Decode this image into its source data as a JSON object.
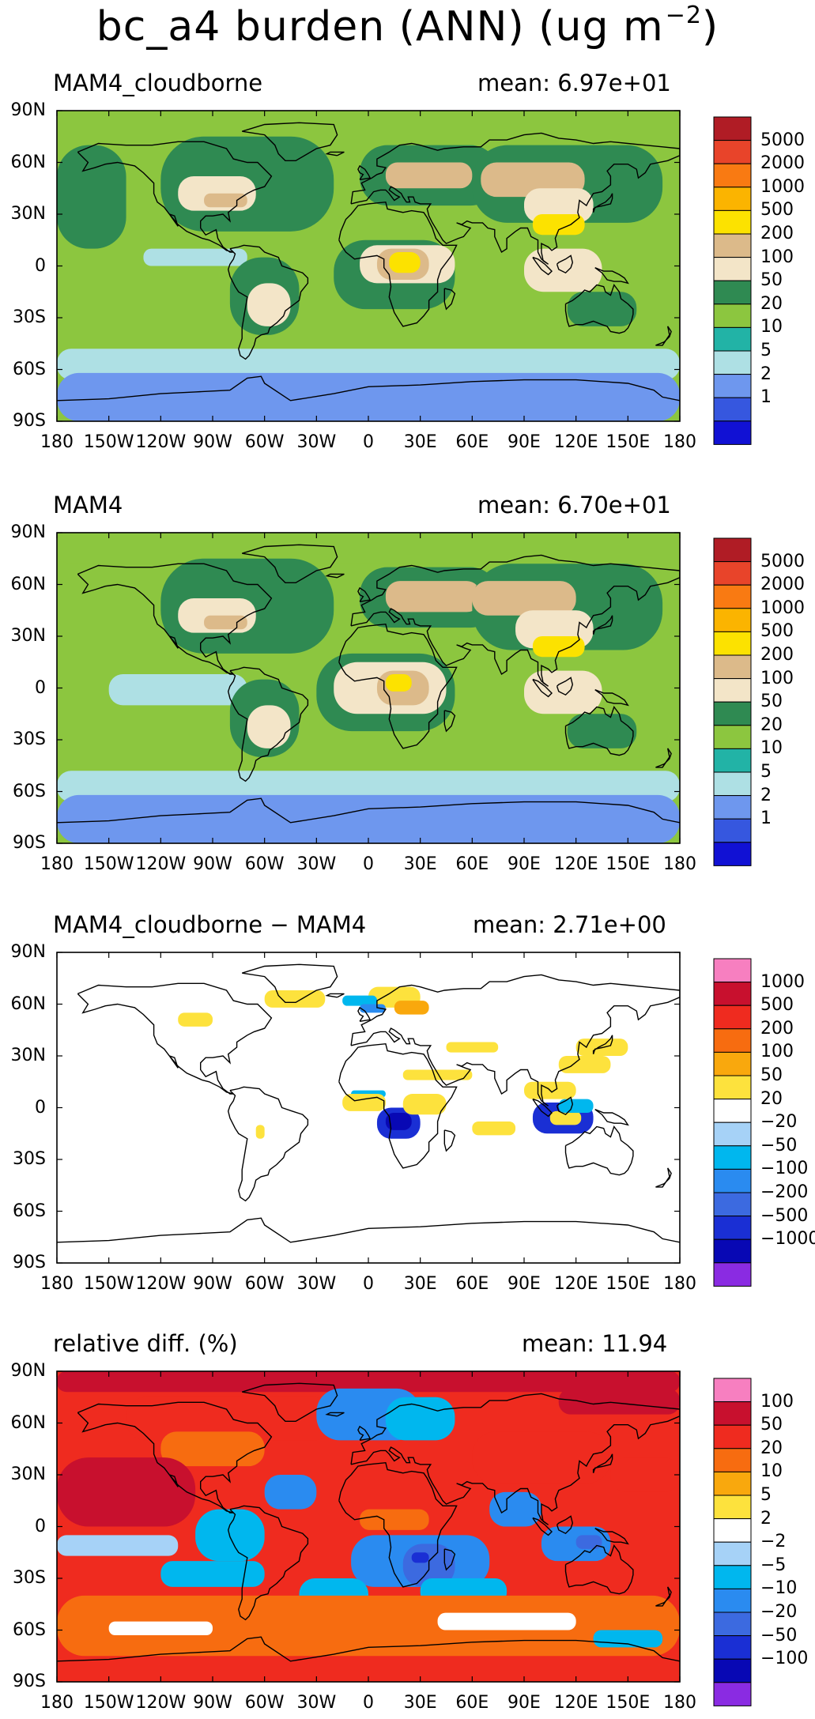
{
  "figure": {
    "title_text": "bc_a4 burden (ANN) (ug m",
    "title_exponent": "−2",
    "title_close": ")"
  },
  "x_tick_labels": [
    "180",
    "150W",
    "120W",
    "90W",
    "60W",
    "30W",
    "0",
    "30E",
    "60E",
    "90E",
    "120E",
    "150E",
    "180"
  ],
  "y_tick_labels": [
    "90N",
    "60N",
    "30N",
    "0",
    "30S",
    "60S",
    "90S"
  ],
  "panels": [
    {
      "id": "p1",
      "title": "MAM4_cloudborne",
      "mean_label": "mean:",
      "mean_value": "6.97e+01",
      "colorbar": {
        "labels": [
          "5000",
          "2000",
          "1000",
          "500",
          "200",
          "100",
          "50",
          "20",
          "10",
          "5",
          "2",
          "1"
        ],
        "colors": [
          "#b01c25",
          "#e8442a",
          "#f97a12",
          "#fbb400",
          "#fce200",
          "#dcba8a",
          "#f3e5c8",
          "#2f8a52",
          "#8cc63f",
          "#22b3a6",
          "#aee0e4",
          "#6e97ee",
          "#3657df",
          "#1111d4"
        ]
      }
    },
    {
      "id": "p2",
      "title": "MAM4",
      "mean_label": "mean:",
      "mean_value": "6.70e+01",
      "colorbar": {
        "labels": [
          "5000",
          "2000",
          "1000",
          "500",
          "200",
          "100",
          "50",
          "20",
          "10",
          "5",
          "2",
          "1"
        ],
        "colors": [
          "#b01c25",
          "#e8442a",
          "#f97a12",
          "#fbb400",
          "#fce200",
          "#dcba8a",
          "#f3e5c8",
          "#2f8a52",
          "#8cc63f",
          "#22b3a6",
          "#aee0e4",
          "#6e97ee",
          "#3657df",
          "#1111d4"
        ]
      }
    },
    {
      "id": "p3",
      "title": "MAM4_cloudborne − MAM4",
      "mean_label": "mean:",
      "mean_value": "2.71e+00",
      "colorbar": {
        "labels": [
          "1000",
          "500",
          "200",
          "100",
          "50",
          "20",
          "−20",
          "−50",
          "−100",
          "−200",
          "−500",
          "−1000"
        ],
        "colors": [
          "#f77fc0",
          "#c8102e",
          "#ef2b1f",
          "#f76c10",
          "#f9a80d",
          "#fde23d",
          "#ffffff",
          "#a6d2f7",
          "#00b7ee",
          "#2a8bf0",
          "#3c6ae0",
          "#1a2fd4",
          "#0808b4",
          "#8a2be2"
        ]
      }
    },
    {
      "id": "p4",
      "title": "relative diff. (%)",
      "mean_label": "mean:",
      "mean_value": "11.94",
      "colorbar": {
        "labels": [
          "100",
          "50",
          "20",
          "10",
          "5",
          "2",
          "−2",
          "−5",
          "−10",
          "−20",
          "−50",
          "−100"
        ],
        "colors": [
          "#f77fc0",
          "#c8102e",
          "#ef2b1f",
          "#f76c10",
          "#f9a80d",
          "#fde23d",
          "#ffffff",
          "#a6d2f7",
          "#00b7ee",
          "#2a8bf0",
          "#3c6ae0",
          "#1a2fd4",
          "#0808b4",
          "#8a2be2"
        ]
      }
    }
  ]
}
